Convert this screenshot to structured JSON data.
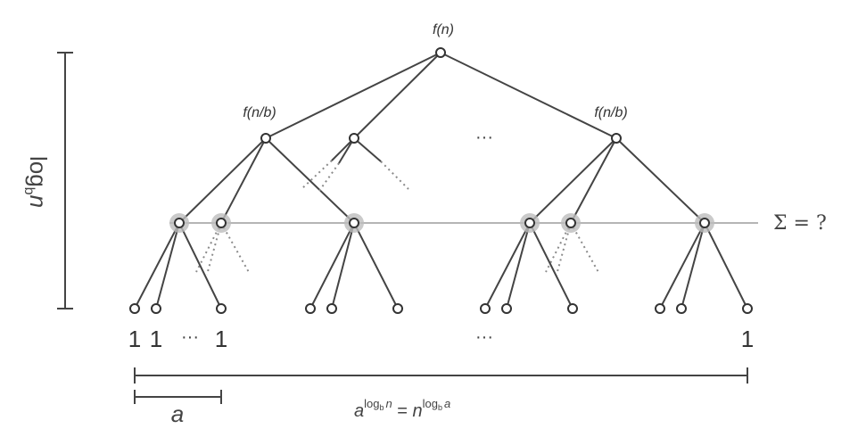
{
  "diagram": {
    "root_label": "f(n)",
    "child_left_label": "f(n/b)",
    "child_right_label": "f(n/b)",
    "level_ellipsis": "···",
    "leaf_one_label": "1",
    "leaf_ellipsis": "···",
    "leaf_middle_ellipsis": "···",
    "level_sum_label": "Σ = ?",
    "height_label": "log",
    "height_label_sub": "b",
    "height_label_arg": "n",
    "branching_label": "a",
    "width_formula": {
      "base": "a",
      "exp_log": "log",
      "exp_sub": "b",
      "exp_arg": "n",
      "equals": " = ",
      "base2": "n",
      "exp2_log": "log",
      "exp2_sub": "b",
      "exp2_arg": "a"
    }
  }
}
